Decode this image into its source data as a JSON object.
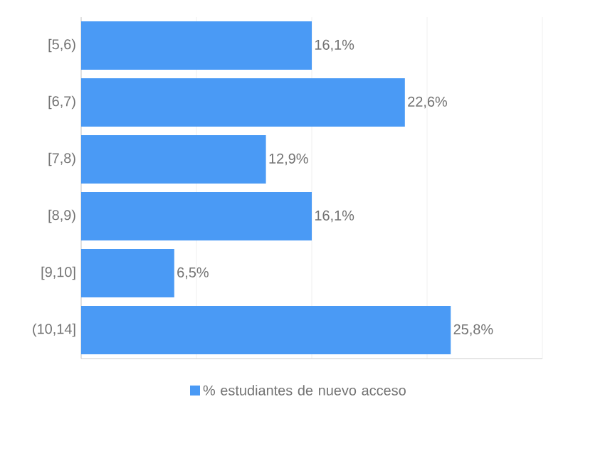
{
  "chart_data": {
    "type": "bar",
    "orientation": "horizontal",
    "categories": [
      "[5,6)",
      "[6,7)",
      "[7,8)",
      "[8,9)",
      "[9,10]",
      "(10,14]"
    ],
    "series": [
      {
        "name": "% estudiantes de nuevo acceso",
        "color": "#4a9af5",
        "values": [
          16.1,
          22.6,
          12.9,
          16.1,
          6.5,
          25.8
        ],
        "value_labels": [
          "16,1%",
          "22,6%",
          "12,9%",
          "16,1%",
          "6,5%",
          "25,8%"
        ]
      }
    ],
    "xlim": [
      0,
      32.2
    ],
    "xticks": [
      {
        "value": 0,
        "label": null
      },
      {
        "value": 8.05,
        "label": null
      },
      {
        "value": 16.1,
        "label": null
      },
      {
        "value": 24.15,
        "label": null
      },
      {
        "value": 32.2,
        "label": null
      }
    ],
    "tick_labels": "y",
    "grid": "x",
    "legend": "bottom"
  }
}
